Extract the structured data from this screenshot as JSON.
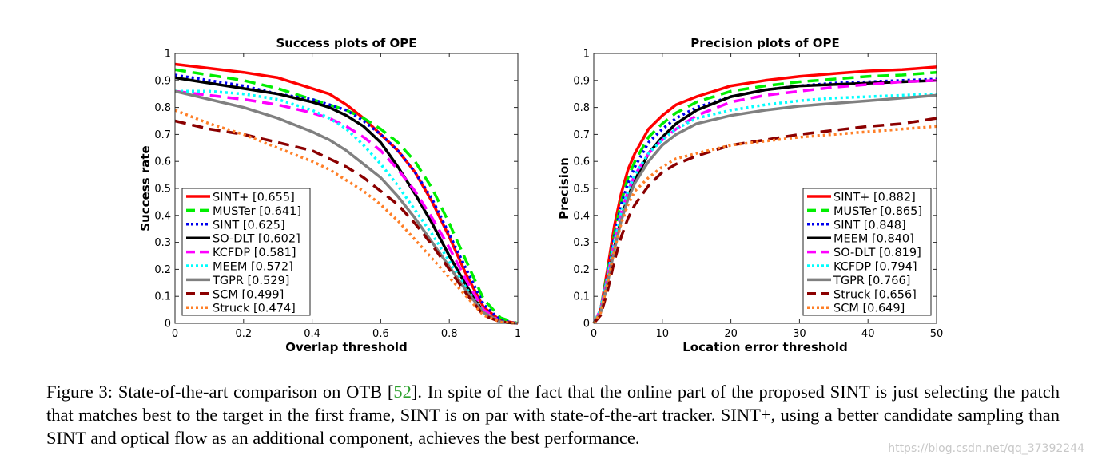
{
  "chart_data": [
    {
      "type": "line",
      "title": "Success plots of OPE",
      "xlabel": "Overlap threshold",
      "ylabel": "Success rate",
      "xlim": [
        0,
        1
      ],
      "ylim": [
        0,
        1
      ],
      "xticks": [
        "0",
        "0.2",
        "0.4",
        "0.6",
        "0.8",
        "1"
      ],
      "xtick_values": [
        0,
        0.2,
        0.4,
        0.6,
        0.8,
        1
      ],
      "yticks": [
        "0",
        "0.1",
        "0.2",
        "0.3",
        "0.4",
        "0.5",
        "0.6",
        "0.7",
        "0.8",
        "0.9",
        "1"
      ],
      "ytick_values": [
        0,
        0.1,
        0.2,
        0.3,
        0.4,
        0.5,
        0.6,
        0.7,
        0.8,
        0.9,
        1
      ],
      "grid": false,
      "legend_position": "bottom-left",
      "series": [
        {
          "name": "SINT+ [0.655]",
          "color": "#ff0000",
          "style": "solid",
          "x": [
            0,
            0.1,
            0.2,
            0.3,
            0.4,
            0.45,
            0.5,
            0.55,
            0.6,
            0.65,
            0.7,
            0.75,
            0.8,
            0.85,
            0.9,
            0.95,
            1
          ],
          "y": [
            0.96,
            0.945,
            0.93,
            0.91,
            0.87,
            0.85,
            0.81,
            0.76,
            0.7,
            0.64,
            0.56,
            0.45,
            0.32,
            0.18,
            0.06,
            0.01,
            0
          ]
        },
        {
          "name": "MUSTer [0.641]",
          "color": "#00ee00",
          "style": "dashed",
          "x": [
            0,
            0.1,
            0.2,
            0.3,
            0.4,
            0.45,
            0.5,
            0.55,
            0.6,
            0.65,
            0.7,
            0.75,
            0.8,
            0.85,
            0.9,
            0.95,
            1
          ],
          "y": [
            0.94,
            0.92,
            0.9,
            0.87,
            0.83,
            0.81,
            0.79,
            0.76,
            0.72,
            0.67,
            0.6,
            0.5,
            0.37,
            0.23,
            0.09,
            0.02,
            0
          ]
        },
        {
          "name": "SINT [0.625]",
          "color": "#0000ee",
          "style": "dotted",
          "x": [
            0,
            0.1,
            0.2,
            0.3,
            0.4,
            0.45,
            0.5,
            0.55,
            0.6,
            0.65,
            0.7,
            0.75,
            0.8,
            0.85,
            0.9,
            0.95,
            1
          ],
          "y": [
            0.92,
            0.9,
            0.88,
            0.85,
            0.83,
            0.81,
            0.79,
            0.75,
            0.7,
            0.64,
            0.56,
            0.46,
            0.33,
            0.2,
            0.07,
            0.01,
            0
          ]
        },
        {
          "name": "SO-DLT [0.602]",
          "color": "#000000",
          "style": "solid",
          "x": [
            0,
            0.1,
            0.2,
            0.3,
            0.4,
            0.45,
            0.5,
            0.55,
            0.6,
            0.65,
            0.7,
            0.75,
            0.8,
            0.85,
            0.9,
            0.95,
            1
          ],
          "y": [
            0.91,
            0.89,
            0.87,
            0.85,
            0.82,
            0.8,
            0.77,
            0.73,
            0.67,
            0.58,
            0.48,
            0.37,
            0.25,
            0.14,
            0.04,
            0.005,
            0
          ]
        },
        {
          "name": "KCFDP [0.581]",
          "color": "#ff00ff",
          "style": "dashed",
          "x": [
            0,
            0.1,
            0.2,
            0.3,
            0.4,
            0.45,
            0.5,
            0.55,
            0.6,
            0.65,
            0.7,
            0.75,
            0.8,
            0.85,
            0.9,
            0.95,
            1
          ],
          "y": [
            0.86,
            0.845,
            0.83,
            0.81,
            0.78,
            0.76,
            0.73,
            0.69,
            0.64,
            0.57,
            0.49,
            0.39,
            0.28,
            0.16,
            0.05,
            0.005,
            0
          ]
        },
        {
          "name": "MEEM [0.572]",
          "color": "#00ffff",
          "style": "dotted",
          "x": [
            0,
            0.1,
            0.2,
            0.3,
            0.4,
            0.45,
            0.5,
            0.55,
            0.6,
            0.65,
            0.7,
            0.75,
            0.8,
            0.85,
            0.9,
            0.95,
            1
          ],
          "y": [
            0.86,
            0.86,
            0.85,
            0.83,
            0.79,
            0.76,
            0.72,
            0.66,
            0.59,
            0.51,
            0.42,
            0.33,
            0.23,
            0.13,
            0.04,
            0.005,
            0
          ]
        },
        {
          "name": "TGPR [0.529]",
          "color": "#808080",
          "style": "solid",
          "x": [
            0,
            0.1,
            0.2,
            0.3,
            0.4,
            0.45,
            0.5,
            0.55,
            0.6,
            0.65,
            0.7,
            0.75,
            0.8,
            0.85,
            0.9,
            0.95,
            1
          ],
          "y": [
            0.86,
            0.83,
            0.8,
            0.76,
            0.71,
            0.68,
            0.64,
            0.59,
            0.54,
            0.47,
            0.39,
            0.3,
            0.21,
            0.12,
            0.04,
            0.005,
            0
          ]
        },
        {
          "name": "SCM [0.499]",
          "color": "#8b0000",
          "style": "dashed",
          "x": [
            0,
            0.1,
            0.2,
            0.3,
            0.4,
            0.45,
            0.5,
            0.55,
            0.6,
            0.65,
            0.7,
            0.75,
            0.8,
            0.85,
            0.9,
            0.95,
            1
          ],
          "y": [
            0.75,
            0.72,
            0.7,
            0.67,
            0.64,
            0.61,
            0.58,
            0.54,
            0.49,
            0.44,
            0.37,
            0.29,
            0.2,
            0.11,
            0.03,
            0.005,
            0
          ]
        },
        {
          "name": "Struck [0.474]",
          "color": "#ff7f27",
          "style": "dotted",
          "x": [
            0,
            0.1,
            0.2,
            0.3,
            0.4,
            0.45,
            0.5,
            0.55,
            0.6,
            0.65,
            0.7,
            0.75,
            0.8,
            0.85,
            0.9,
            0.95,
            1
          ],
          "y": [
            0.79,
            0.74,
            0.7,
            0.65,
            0.6,
            0.57,
            0.53,
            0.49,
            0.44,
            0.38,
            0.31,
            0.24,
            0.17,
            0.1,
            0.03,
            0.005,
            0
          ]
        }
      ]
    },
    {
      "type": "line",
      "title": "Precision plots of OPE",
      "xlabel": "Location error threshold",
      "ylabel": "Precision",
      "xlim": [
        0,
        50
      ],
      "ylim": [
        0,
        1
      ],
      "xticks": [
        "0",
        "10",
        "20",
        "30",
        "40",
        "50"
      ],
      "xtick_values": [
        0,
        10,
        20,
        30,
        40,
        50
      ],
      "yticks": [
        "0",
        "0.1",
        "0.2",
        "0.3",
        "0.4",
        "0.5",
        "0.6",
        "0.7",
        "0.8",
        "0.9",
        "1"
      ],
      "ytick_values": [
        0,
        0.1,
        0.2,
        0.3,
        0.4,
        0.5,
        0.6,
        0.7,
        0.8,
        0.9,
        1
      ],
      "grid": false,
      "legend_position": "bottom-right",
      "series": [
        {
          "name": "SINT+ [0.882]",
          "color": "#ff0000",
          "style": "solid",
          "x": [
            0,
            1,
            2,
            3,
            4,
            5,
            6,
            8,
            10,
            12,
            15,
            20,
            25,
            30,
            35,
            40,
            45,
            50
          ],
          "y": [
            0,
            0.05,
            0.2,
            0.36,
            0.48,
            0.57,
            0.63,
            0.72,
            0.77,
            0.81,
            0.84,
            0.88,
            0.9,
            0.915,
            0.925,
            0.935,
            0.94,
            0.95
          ]
        },
        {
          "name": "MUSTer [0.865]",
          "color": "#00ee00",
          "style": "dashed",
          "x": [
            0,
            1,
            2,
            3,
            4,
            5,
            6,
            8,
            10,
            12,
            15,
            20,
            25,
            30,
            35,
            40,
            45,
            50
          ],
          "y": [
            0,
            0.05,
            0.19,
            0.33,
            0.45,
            0.54,
            0.6,
            0.69,
            0.74,
            0.78,
            0.82,
            0.86,
            0.88,
            0.895,
            0.905,
            0.915,
            0.92,
            0.93
          ]
        },
        {
          "name": "SINT [0.848]",
          "color": "#0000ee",
          "style": "dotted",
          "x": [
            0,
            1,
            2,
            3,
            4,
            5,
            6,
            8,
            10,
            12,
            15,
            20,
            25,
            30,
            35,
            40,
            45,
            50
          ],
          "y": [
            0,
            0.05,
            0.18,
            0.32,
            0.44,
            0.52,
            0.58,
            0.67,
            0.72,
            0.76,
            0.8,
            0.84,
            0.865,
            0.88,
            0.89,
            0.895,
            0.9,
            0.905
          ]
        },
        {
          "name": "MEEM [0.840]",
          "color": "#000000",
          "style": "solid",
          "x": [
            0,
            1,
            2,
            3,
            4,
            5,
            6,
            8,
            10,
            12,
            15,
            20,
            25,
            30,
            35,
            40,
            45,
            50
          ],
          "y": [
            0,
            0.04,
            0.15,
            0.28,
            0.39,
            0.47,
            0.53,
            0.63,
            0.69,
            0.74,
            0.79,
            0.84,
            0.865,
            0.88,
            0.885,
            0.89,
            0.895,
            0.9
          ]
        },
        {
          "name": "SO-DLT [0.819]",
          "color": "#ff00ff",
          "style": "dashed",
          "x": [
            0,
            1,
            2,
            3,
            4,
            5,
            6,
            8,
            10,
            12,
            15,
            20,
            25,
            30,
            35,
            40,
            45,
            50
          ],
          "y": [
            0,
            0.05,
            0.17,
            0.3,
            0.41,
            0.49,
            0.55,
            0.63,
            0.68,
            0.72,
            0.77,
            0.82,
            0.845,
            0.86,
            0.875,
            0.885,
            0.895,
            0.9
          ]
        },
        {
          "name": "KCFDP [0.794]",
          "color": "#00ffff",
          "style": "dotted",
          "x": [
            0,
            1,
            2,
            3,
            4,
            5,
            6,
            8,
            10,
            12,
            15,
            20,
            25,
            30,
            35,
            40,
            45,
            50
          ],
          "y": [
            0,
            0.05,
            0.17,
            0.3,
            0.41,
            0.49,
            0.55,
            0.63,
            0.68,
            0.72,
            0.76,
            0.79,
            0.81,
            0.825,
            0.835,
            0.84,
            0.845,
            0.85
          ]
        },
        {
          "name": "TGPR [0.766]",
          "color": "#808080",
          "style": "solid",
          "x": [
            0,
            1,
            2,
            3,
            4,
            5,
            6,
            8,
            10,
            12,
            15,
            20,
            25,
            30,
            35,
            40,
            45,
            50
          ],
          "y": [
            0,
            0.04,
            0.15,
            0.27,
            0.38,
            0.46,
            0.52,
            0.6,
            0.66,
            0.7,
            0.74,
            0.77,
            0.79,
            0.805,
            0.815,
            0.825,
            0.835,
            0.845
          ]
        },
        {
          "name": "Struck [0.656]",
          "color": "#8b0000",
          "style": "dashed",
          "x": [
            0,
            1,
            2,
            3,
            4,
            5,
            6,
            8,
            10,
            12,
            15,
            20,
            25,
            30,
            35,
            40,
            45,
            50
          ],
          "y": [
            0,
            0.03,
            0.12,
            0.23,
            0.32,
            0.39,
            0.44,
            0.51,
            0.56,
            0.59,
            0.62,
            0.66,
            0.68,
            0.7,
            0.715,
            0.73,
            0.74,
            0.76
          ]
        },
        {
          "name": "SCM [0.649]",
          "color": "#ff7f27",
          "style": "dotted",
          "x": [
            0,
            1,
            2,
            3,
            4,
            5,
            6,
            8,
            10,
            12,
            15,
            20,
            25,
            30,
            35,
            40,
            45,
            50
          ],
          "y": [
            0,
            0.04,
            0.15,
            0.27,
            0.37,
            0.44,
            0.49,
            0.54,
            0.58,
            0.61,
            0.63,
            0.66,
            0.675,
            0.69,
            0.7,
            0.71,
            0.72,
            0.73
          ]
        }
      ]
    }
  ],
  "caption": {
    "prefix": "Figure 3:  State-of-the-art comparison on OTB [",
    "ref": "52",
    "suffix": "].  In spite of the fact that the online part of the proposed SINT is just selecting the patch that matches best to the target in the first frame, SINT is on par with state-of-the-art tracker. SINT+, using a better candidate sampling than SINT and optical flow as an additional component, achieves the best performance."
  },
  "watermark": "https://blog.csdn.net/qq_37392244"
}
